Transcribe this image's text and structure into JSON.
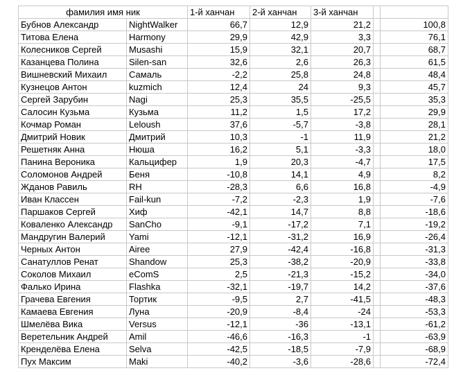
{
  "header": {
    "name_nick": "фамилия имя ник",
    "round1": "1-й ханчан",
    "round2": "2-й ханчан",
    "round3": "3-й ханчан",
    "gap": "",
    "total": ""
  },
  "rows": [
    {
      "name": "Бубнов Александр",
      "nick": "NightWalker",
      "r1": "66,7",
      "r2": "12,9",
      "r3": "21,2",
      "total": "100,8"
    },
    {
      "name": "Титова Елена",
      "nick": "Harmony",
      "r1": "29,9",
      "r2": "42,9",
      "r3": "3,3",
      "total": "76,1"
    },
    {
      "name": "Колесников Сергей",
      "nick": "Musashi",
      "r1": "15,9",
      "r2": "32,1",
      "r3": "20,7",
      "total": "68,7"
    },
    {
      "name": "Казанцева Полина",
      "nick": "Silen-san",
      "r1": "32,6",
      "r2": "2,6",
      "r3": "26,3",
      "total": "61,5"
    },
    {
      "name": "Вишневский Михаил",
      "nick": "Самаль",
      "r1": "-2,2",
      "r2": "25,8",
      "r3": "24,8",
      "total": "48,4"
    },
    {
      "name": "Кузнецов Антон",
      "nick": "kuzmich",
      "r1": "12,4",
      "r2": "24",
      "r3": "9,3",
      "total": "45,7"
    },
    {
      "name": "Сергей Зарубин",
      "nick": "Nagi",
      "r1": "25,3",
      "r2": "35,5",
      "r3": "-25,5",
      "total": "35,3"
    },
    {
      "name": "Салосин Кузьма",
      "nick": "Кузьма",
      "r1": "11,2",
      "r2": "1,5",
      "r3": "17,2",
      "total": "29,9"
    },
    {
      "name": "Кочмар Роман",
      "nick": "Leloush",
      "r1": "37,6",
      "r2": "-5,7",
      "r3": "-3,8",
      "total": "28,1"
    },
    {
      "name": "Дмитрий Новик",
      "nick": "Дмитрий",
      "r1": "10,3",
      "r2": "-1",
      "r3": "11,9",
      "total": "21,2"
    },
    {
      "name": "Решетняк Анна",
      "nick": "Нюша",
      "r1": "16,2",
      "r2": "5,1",
      "r3": "-3,3",
      "total": "18,0"
    },
    {
      "name": "Панина Вероника",
      "nick": "Кальцифер",
      "r1": "1,9",
      "r2": "20,3",
      "r3": "-4,7",
      "total": "17,5"
    },
    {
      "name": "Соломонов Андрей",
      "nick": "Беня",
      "r1": "-10,8",
      "r2": "14,1",
      "r3": "4,9",
      "total": "8,2"
    },
    {
      "name": "Жданов Равиль",
      "nick": "RH",
      "r1": "-28,3",
      "r2": "6,6",
      "r3": "16,8",
      "total": "-4,9"
    },
    {
      "name": "Иван Классен",
      "nick": "Fail-kun",
      "r1": "-7,2",
      "r2": "-2,3",
      "r3": "1,9",
      "total": "-7,6"
    },
    {
      "name": "Паршаков Сергей",
      "nick": "Хиф",
      "r1": "-42,1",
      "r2": "14,7",
      "r3": "8,8",
      "total": "-18,6"
    },
    {
      "name": "Коваленко Александр",
      "nick": "SanCho",
      "r1": "-9,1",
      "r2": "-17,2",
      "r3": "7,1",
      "total": "-19,2"
    },
    {
      "name": "Мандругин Валерий",
      "nick": "Yami",
      "r1": "-12,1",
      "r2": "-31,2",
      "r3": "16,9",
      "total": "-26,4"
    },
    {
      "name": "Черных Антон",
      "nick": "Airee",
      "r1": "27,9",
      "r2": "-42,4",
      "r3": "-16,8",
      "total": "-31,3"
    },
    {
      "name": "Санатуллов Ренат",
      "nick": "Shandow",
      "r1": "25,3",
      "r2": "-38,2",
      "r3": "-20,9",
      "total": "-33,8"
    },
    {
      "name": "Соколов Михаил",
      "nick": "eComS",
      "r1": "2,5",
      "r2": "-21,3",
      "r3": "-15,2",
      "total": "-34,0"
    },
    {
      "name": "Фалько Ирина",
      "nick": "Flashka",
      "r1": "-32,1",
      "r2": "-19,7",
      "r3": "14,2",
      "total": "-37,6"
    },
    {
      "name": "Грачева Евгения",
      "nick": "Тортик",
      "r1": "-9,5",
      "r2": "2,7",
      "r3": "-41,5",
      "total": "-48,3"
    },
    {
      "name": "Камаева Евгения",
      "nick": "Луна",
      "r1": "-20,9",
      "r2": "-8,4",
      "r3": "-24",
      "total": "-53,3"
    },
    {
      "name": "Шмелёва Вика",
      "nick": "Versus",
      "r1": "-12,1",
      "r2": "-36",
      "r3": "-13,1",
      "total": "-61,2"
    },
    {
      "name": "Веретельник Андрей",
      "nick": "Amil",
      "r1": "-46,6",
      "r2": "-16,3",
      "r3": "-1",
      "total": "-63,9"
    },
    {
      "name": "Кренделёва Елена",
      "nick": "Selva",
      "r1": "-42,5",
      "r2": "-18,5",
      "r3": "-7,9",
      "total": "-68,9"
    },
    {
      "name": "Пух Максим",
      "nick": "Maki",
      "r1": "-40,2",
      "r2": "-3,6",
      "r3": "-28,6",
      "total": "-72,4"
    }
  ]
}
